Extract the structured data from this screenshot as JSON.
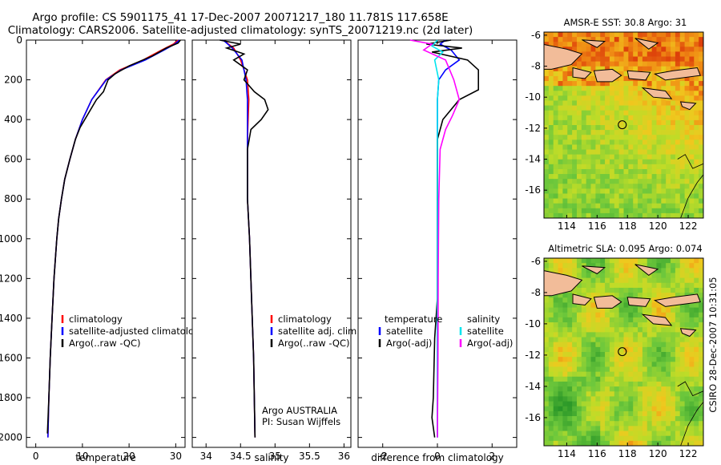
{
  "header": {
    "line1": "Argo profile: CS 5901175_41 17-Dec-2007 20071217_180 11.781S 117.658E",
    "line2": "Climatology: CARS2006. Satellite-adjusted climatology: synTS_20071219.nc (2d later)"
  },
  "side_credit": "CSIRO 28-Dec-2007 10:31:05",
  "colors": {
    "clim": "#ff0000",
    "sat": "#0000ff",
    "argo": "#000000",
    "sal_sat": "#00e5ee",
    "sal_argo": "#ff00ff"
  },
  "chart_data": [
    {
      "type": "line",
      "id": "temperature",
      "xlabel": "temperature",
      "ylabel": "",
      "xlim": [
        -2,
        32
      ],
      "ylim": [
        2050,
        0
      ],
      "y_reversed": true,
      "xticks": [
        0,
        10,
        20,
        30
      ],
      "yticks": [
        0,
        200,
        400,
        600,
        800,
        1000,
        1200,
        1400,
        1600,
        1800,
        2000
      ],
      "legend": [
        "climatology",
        "satellite-adjusted climatology",
        "Argo(..raw -QC)"
      ],
      "series": [
        {
          "name": "climatology",
          "color": "#ff0000",
          "points": [
            [
              30.5,
              0
            ],
            [
              29.5,
              20
            ],
            [
              27,
              50
            ],
            [
              23,
              100
            ],
            [
              18,
              150
            ],
            [
              15,
              200
            ],
            [
              12,
              300
            ],
            [
              10,
              400
            ],
            [
              8.5,
              500
            ],
            [
              7.3,
              600
            ],
            [
              6.2,
              700
            ],
            [
              5.5,
              800
            ],
            [
              4.9,
              900
            ],
            [
              4.5,
              1000
            ],
            [
              3.9,
              1200
            ],
            [
              3.5,
              1400
            ],
            [
              3.1,
              1600
            ],
            [
              2.8,
              1800
            ],
            [
              2.6,
              2000
            ]
          ]
        },
        {
          "name": "satellite-adjusted climatology",
          "color": "#0000ff",
          "points": [
            [
              30.8,
              0
            ],
            [
              29.8,
              20
            ],
            [
              27.5,
              50
            ],
            [
              23.5,
              100
            ],
            [
              18.3,
              150
            ],
            [
              15.1,
              200
            ],
            [
              12,
              300
            ],
            [
              10,
              400
            ],
            [
              8.5,
              500
            ],
            [
              7.3,
              600
            ],
            [
              6.2,
              700
            ],
            [
              5.5,
              800
            ],
            [
              4.9,
              900
            ],
            [
              4.5,
              1000
            ],
            [
              3.9,
              1200
            ],
            [
              3.5,
              1400
            ],
            [
              3.1,
              1600
            ],
            [
              2.8,
              1800
            ],
            [
              2.6,
              2000
            ]
          ]
        },
        {
          "name": "Argo(..raw -QC)",
          "color": "#000000",
          "points": [
            [
              31,
              0
            ],
            [
              30.5,
              15
            ],
            [
              28,
              40
            ],
            [
              25,
              80
            ],
            [
              20,
              130
            ],
            [
              17,
              170
            ],
            [
              15.5,
              200
            ],
            [
              14.5,
              260
            ],
            [
              13,
              300
            ],
            [
              11,
              380
            ],
            [
              9.5,
              440
            ],
            [
              8.5,
              500
            ],
            [
              7.3,
              600
            ],
            [
              6.2,
              700
            ],
            [
              5.5,
              800
            ],
            [
              4.9,
              900
            ],
            [
              4.5,
              1000
            ],
            [
              3.9,
              1200
            ],
            [
              3.5,
              1400
            ],
            [
              3.1,
              1600
            ],
            [
              2.8,
              1800
            ],
            [
              2.5,
              1980
            ]
          ]
        }
      ]
    },
    {
      "type": "line",
      "id": "salinity",
      "xlabel": "salinity",
      "xlim": [
        33.8,
        36.1
      ],
      "ylim": [
        2050,
        0
      ],
      "y_reversed": true,
      "xticks": [
        34,
        34.5,
        35,
        35.5,
        36
      ],
      "legend": [
        "climatology",
        "satellite adj. clim.",
        "Argo(..raw -QC)"
      ],
      "annotation": [
        "Argo AUSTRALIA",
        "PI: Susan Wijffels"
      ],
      "series": [
        {
          "name": "climatology",
          "color": "#ff0000",
          "points": [
            [
              34.25,
              0
            ],
            [
              34.4,
              40
            ],
            [
              34.5,
              100
            ],
            [
              34.6,
              200
            ],
            [
              34.62,
              300
            ],
            [
              34.6,
              500
            ],
            [
              34.6,
              800
            ],
            [
              34.63,
              1000
            ],
            [
              34.66,
              1300
            ],
            [
              34.69,
              1600
            ],
            [
              34.71,
              2000
            ]
          ]
        },
        {
          "name": "satellite adj. clim.",
          "color": "#0000ff",
          "points": [
            [
              34.25,
              0
            ],
            [
              34.38,
              40
            ],
            [
              34.52,
              100
            ],
            [
              34.58,
              200
            ],
            [
              34.6,
              300
            ],
            [
              34.6,
              500
            ],
            [
              34.6,
              800
            ],
            [
              34.63,
              1000
            ],
            [
              34.66,
              1300
            ],
            [
              34.69,
              1600
            ],
            [
              34.71,
              2000
            ]
          ]
        },
        {
          "name": "Argo(..raw -QC)",
          "color": "#000000",
          "points": [
            [
              34.2,
              0
            ],
            [
              34.5,
              20
            ],
            [
              34.3,
              40
            ],
            [
              34.55,
              70
            ],
            [
              34.4,
              100
            ],
            [
              34.6,
              150
            ],
            [
              34.55,
              200
            ],
            [
              34.7,
              260
            ],
            [
              34.85,
              300
            ],
            [
              34.9,
              350
            ],
            [
              34.8,
              400
            ],
            [
              34.65,
              450
            ],
            [
              34.6,
              550
            ],
            [
              34.6,
              800
            ],
            [
              34.63,
              1000
            ],
            [
              34.66,
              1300
            ],
            [
              34.69,
              1600
            ],
            [
              34.71,
              2000
            ]
          ]
        }
      ]
    },
    {
      "type": "line",
      "id": "difference",
      "xlabel": "difference from climatology",
      "xlim": [
        -2.9,
        2.9
      ],
      "ylim": [
        2050,
        0
      ],
      "y_reversed": true,
      "xticks": [
        -2,
        0,
        2
      ],
      "legend_left_title": "temperature",
      "legend_right_title": "salinity",
      "legend_left": [
        "satellite",
        "Argo(-adj)"
      ],
      "legend_right": [
        "satellite",
        "Argo(-adj)"
      ],
      "series": [
        {
          "name": "temperature satellite",
          "color": "#0000ff",
          "points": [
            [
              0.3,
              0
            ],
            [
              0.1,
              20
            ],
            [
              0.5,
              50
            ],
            [
              0.8,
              100
            ],
            [
              0.3,
              150
            ],
            [
              0.05,
              200
            ],
            [
              0,
              300
            ],
            [
              0,
              600
            ],
            [
              0,
              2000
            ]
          ]
        },
        {
          "name": "temperature Argo(-adj)",
          "color": "#000000",
          "points": [
            [
              0.5,
              0
            ],
            [
              -0.4,
              20
            ],
            [
              0.9,
              40
            ],
            [
              -0.2,
              60
            ],
            [
              1.1,
              100
            ],
            [
              1.5,
              150
            ],
            [
              1.5,
              250
            ],
            [
              0.8,
              300
            ],
            [
              0.2,
              400
            ],
            [
              0,
              500
            ],
            [
              0,
              1300
            ],
            [
              -0.1,
              1500
            ],
            [
              -0.15,
              1800
            ],
            [
              -0.2,
              1900
            ],
            [
              -0.1,
              2000
            ]
          ]
        },
        {
          "name": "salinity satellite",
          "color": "#00e5ee",
          "points": [
            [
              0,
              0
            ],
            [
              -0.2,
              30
            ],
            [
              0.2,
              60
            ],
            [
              -0.1,
              100
            ],
            [
              0.05,
              200
            ],
            [
              0,
              300
            ],
            [
              0,
              2000
            ]
          ]
        },
        {
          "name": "salinity Argo(-adj)",
          "color": "#ff00ff",
          "points": [
            [
              -1.0,
              0
            ],
            [
              -0.2,
              20
            ],
            [
              -0.5,
              50
            ],
            [
              0.3,
              100
            ],
            [
              0.6,
              200
            ],
            [
              0.8,
              300
            ],
            [
              0.55,
              380
            ],
            [
              0.3,
              450
            ],
            [
              0.1,
              550
            ],
            [
              0.05,
              800
            ],
            [
              0.03,
              1200
            ],
            [
              0.02,
              1600
            ],
            [
              0,
              2000
            ]
          ]
        }
      ]
    },
    {
      "type": "heatmap",
      "id": "sst-map",
      "title": "AMSR-E SST: 30.8 Argo: 31",
      "xticks": [
        114,
        116,
        118,
        120,
        122
      ],
      "yticks": [
        -6,
        -8,
        -10,
        -12,
        -14,
        -16
      ],
      "xlim": [
        112.5,
        123
      ],
      "ylim": [
        -17.8,
        -5.8
      ],
      "marker": [
        117.658,
        -11.781
      ]
    },
    {
      "type": "heatmap",
      "id": "sla-map",
      "title": "Altimetric SLA: 0.095 Argo: 0.074",
      "xticks": [
        114,
        116,
        118,
        120,
        122
      ],
      "yticks": [
        -6,
        -8,
        -10,
        -12,
        -14,
        -16
      ],
      "xlim": [
        112.5,
        123
      ],
      "ylim": [
        -17.8,
        -5.8
      ],
      "marker": [
        117.658,
        -11.781
      ]
    }
  ]
}
